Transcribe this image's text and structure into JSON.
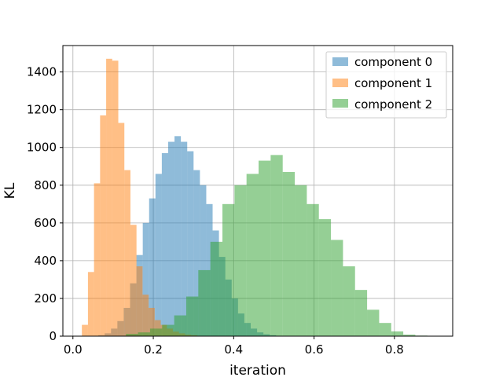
{
  "chart_data": {
    "type": "histogram",
    "title": "",
    "xlabel": "iteration",
    "ylabel": "KL",
    "xlim": [
      -0.025,
      0.945
    ],
    "ylim": [
      0,
      1540
    ],
    "xticks": [
      0.0,
      0.2,
      0.4,
      0.6,
      0.8
    ],
    "xtick_labels": [
      "0.0",
      "0.2",
      "0.4",
      "0.6",
      "0.8"
    ],
    "yticks": [
      0,
      200,
      400,
      600,
      800,
      1000,
      1200,
      1400
    ],
    "ytick_labels": [
      "0",
      "200",
      "400",
      "600",
      "800",
      "1000",
      "1200",
      "1400"
    ],
    "grid": true,
    "legend_position": "top-right",
    "bar_opacity": 0.5,
    "series": [
      {
        "name": "component 0",
        "color": "#1f77b4",
        "bin_edges": [
          0.0474,
          0.0632,
          0.079,
          0.0948,
          0.1106,
          0.1264,
          0.1422,
          0.158,
          0.1738,
          0.1896,
          0.2054,
          0.2212,
          0.237,
          0.2528,
          0.2686,
          0.2844,
          0.3002,
          0.316,
          0.3318,
          0.3476,
          0.3634,
          0.3792,
          0.395,
          0.4108,
          0.4266,
          0.4424,
          0.4582,
          0.474,
          0.4898,
          0.5056,
          0.5214
        ],
        "counts": [
          2,
          5,
          15,
          40,
          80,
          150,
          280,
          430,
          600,
          730,
          860,
          970,
          1030,
          1060,
          1030,
          980,
          880,
          800,
          700,
          560,
          420,
          300,
          200,
          120,
          70,
          40,
          20,
          10,
          5,
          2
        ]
      },
      {
        "name": "component 1",
        "color": "#ff7f0e",
        "bin_edges": [
          0.0223,
          0.0374,
          0.0525,
          0.0676,
          0.0827,
          0.0978,
          0.1129,
          0.128,
          0.1431,
          0.1582,
          0.1733,
          0.1884,
          0.2035,
          0.2186,
          0.2337,
          0.2488,
          0.2639,
          0.279,
          0.2941,
          0.3092,
          0.3243,
          0.3394,
          0.3545
        ],
        "counts": [
          60,
          340,
          810,
          1170,
          1470,
          1460,
          1130,
          880,
          590,
          370,
          220,
          150,
          85,
          60,
          40,
          24,
          15,
          8,
          5,
          2,
          1,
          1
        ]
      },
      {
        "name": "component 2",
        "color": "#2ca02c",
        "bin_edges": [
          0.132,
          0.162,
          0.192,
          0.222,
          0.252,
          0.282,
          0.312,
          0.342,
          0.372,
          0.402,
          0.432,
          0.462,
          0.492,
          0.522,
          0.552,
          0.582,
          0.612,
          0.642,
          0.672,
          0.702,
          0.732,
          0.762,
          0.792,
          0.822,
          0.852,
          0.882,
          0.912
        ],
        "counts": [
          12,
          20,
          40,
          60,
          110,
          210,
          350,
          500,
          700,
          800,
          860,
          930,
          960,
          870,
          800,
          700,
          620,
          510,
          370,
          245,
          140,
          70,
          25,
          8,
          3,
          1
        ]
      }
    ]
  }
}
